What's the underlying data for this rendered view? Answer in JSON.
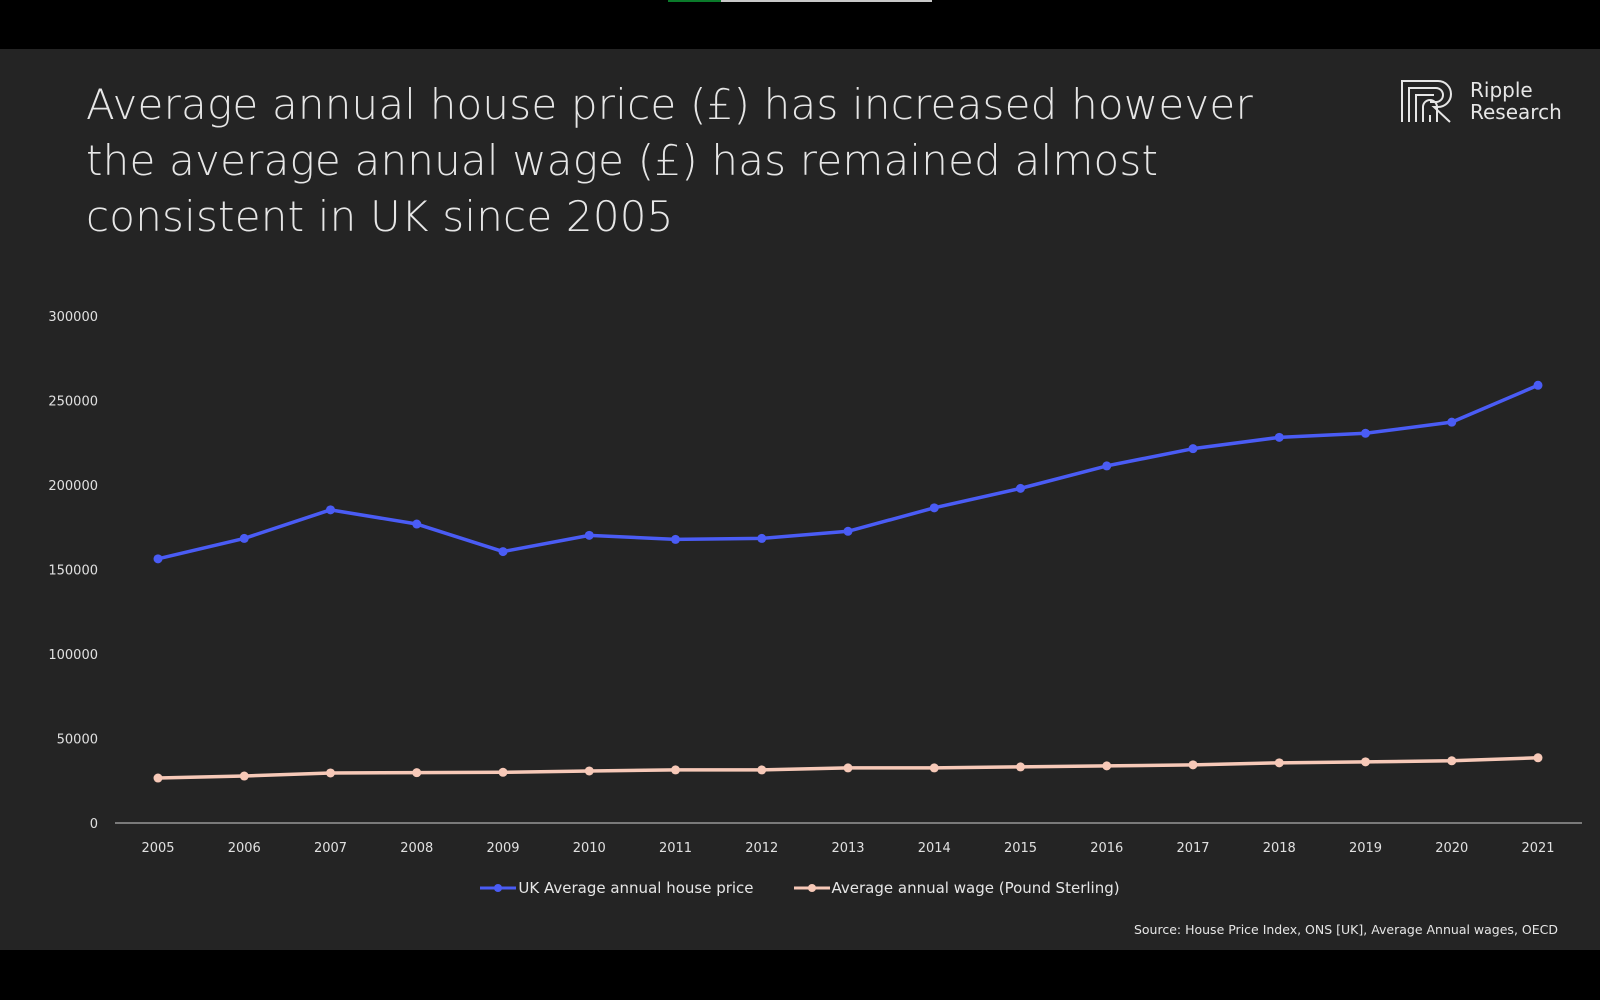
{
  "slide": {
    "title": "Average annual house price (£) has increased however the average annual wage (£) has remained almost consistent in UK since 2005",
    "logo": {
      "line1": "Ripple",
      "line2": "Research"
    },
    "source": "Source: House Price Index, ONS [UK],  Average Annual wages, OECD"
  },
  "progress": {
    "fraction": 0.2
  },
  "chart_data": {
    "type": "line",
    "title": "",
    "xlabel": "",
    "ylabel": "",
    "ylim": [
      0,
      300000
    ],
    "yticks": [
      "0",
      "50000",
      "100000",
      "150000",
      "200000",
      "250000",
      "300000"
    ],
    "grid": false,
    "legend": "bottom",
    "categories": [
      "2005",
      "2006",
      "2007",
      "2008",
      "2009",
      "2010",
      "2011",
      "2012",
      "2013",
      "2014",
      "2015",
      "2016",
      "2017",
      "2018",
      "2019",
      "2020",
      "2021"
    ],
    "series": [
      {
        "name": "UK Average annual house price",
        "color": "#4a5cf5",
        "values": [
          156300,
          168400,
          185300,
          176900,
          160600,
          170200,
          167800,
          168400,
          172600,
          186500,
          198000,
          211300,
          221500,
          228200,
          230600,
          237200,
          259000
        ]
      },
      {
        "name": "Average annual wage (Pound Sterling)",
        "color": "#f7c9b8",
        "values": [
          26600,
          27800,
          29600,
          29800,
          30000,
          30800,
          31400,
          31400,
          32600,
          32600,
          33200,
          33800,
          34400,
          35600,
          36200,
          36800,
          38600
        ]
      }
    ]
  }
}
